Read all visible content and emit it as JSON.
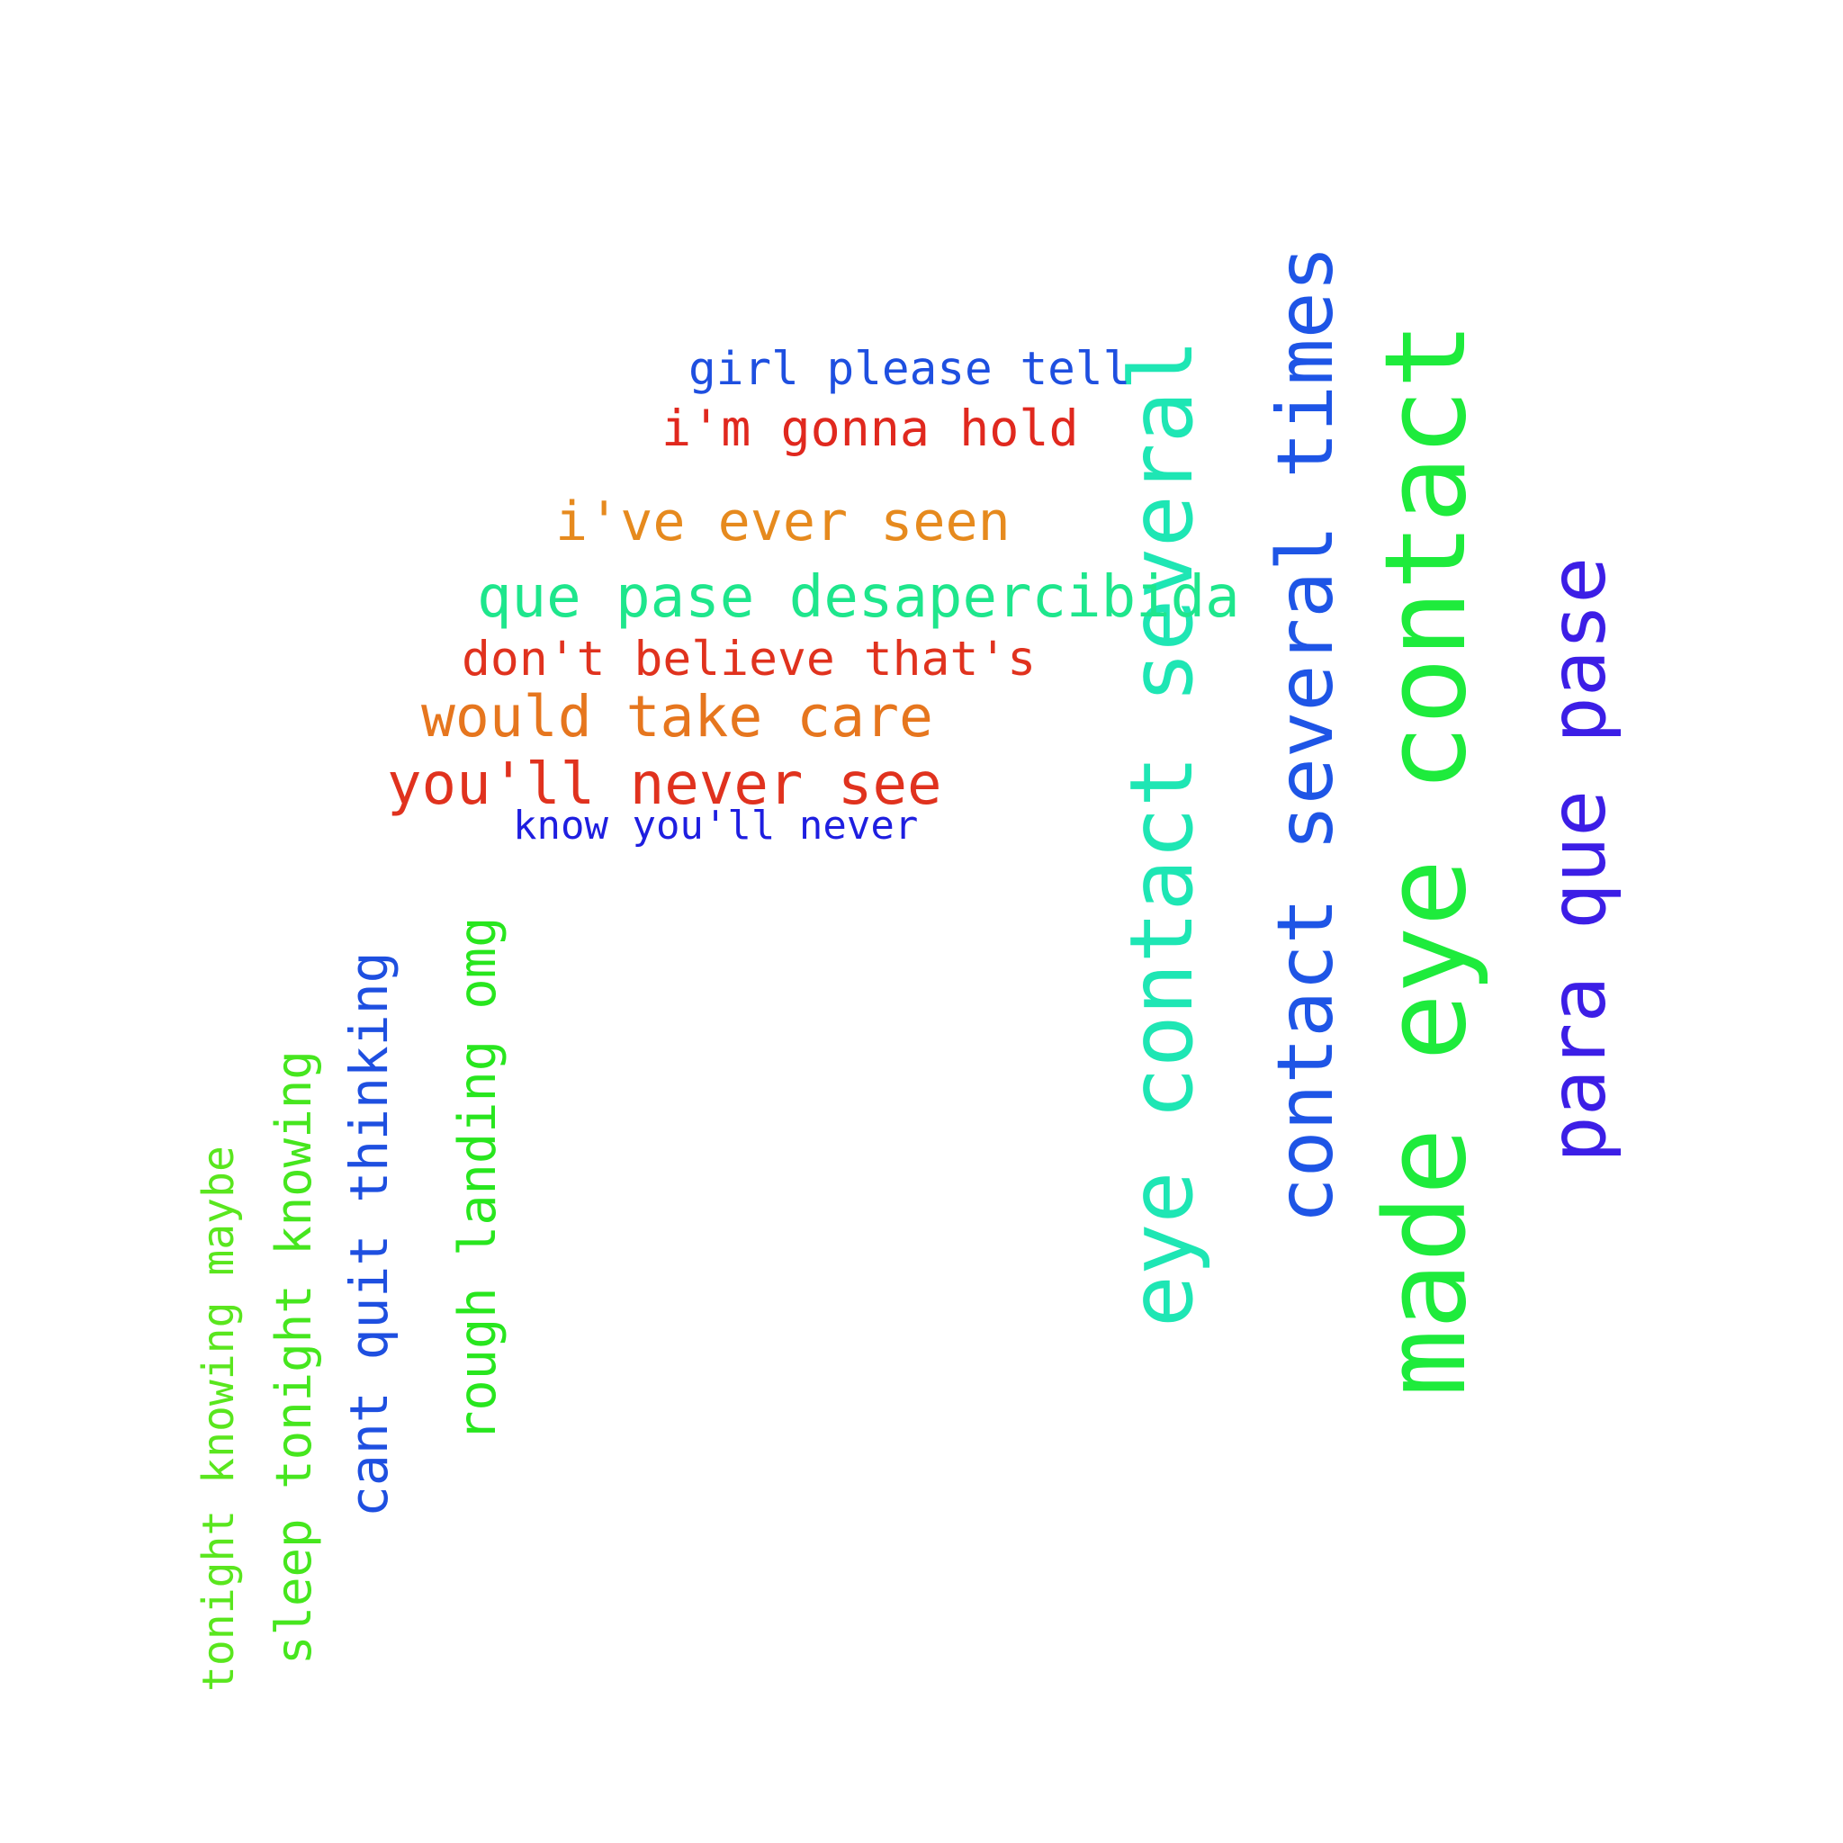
{
  "words": [
    {
      "id": "word-made-eye-contact",
      "text": "made eye contact",
      "color": "#1eeb3c",
      "orientation": "vertical"
    },
    {
      "id": "word-eye-contact-several",
      "text": "eye contact several",
      "color": "#1ee6b4",
      "orientation": "vertical"
    },
    {
      "id": "word-contact-several-times",
      "text": "contact several times",
      "color": "#1e55e6",
      "orientation": "vertical"
    },
    {
      "id": "word-para-que-pase",
      "text": "para que pase",
      "color": "#3c1ee6",
      "orientation": "vertical"
    },
    {
      "id": "word-girl-please-tell",
      "text": "girl please tell",
      "color": "#1e4fe0",
      "orientation": "horizontal"
    },
    {
      "id": "word-im-gonna-hold",
      "text": "i'm gonna hold",
      "color": "#e0281e",
      "orientation": "horizontal"
    },
    {
      "id": "word-ive-ever-seen",
      "text": "i've ever seen",
      "color": "#e68a1e",
      "orientation": "horizontal"
    },
    {
      "id": "word-que-pase-desapercibida",
      "text": "que pase desapercibida",
      "color": "#1ee68c",
      "orientation": "horizontal"
    },
    {
      "id": "word-dont-believe-thats",
      "text": "don't believe that's",
      "color": "#e0321e",
      "orientation": "horizontal"
    },
    {
      "id": "word-would-take-care",
      "text": "would take care",
      "color": "#e6761e",
      "orientation": "horizontal"
    },
    {
      "id": "word-youll-never-see",
      "text": "you'll never see",
      "color": "#e0321e",
      "orientation": "horizontal"
    },
    {
      "id": "word-know-youll-never",
      "text": "know you'll never",
      "color": "#1e1ee0",
      "orientation": "horizontal"
    },
    {
      "id": "word-rough-landing-omg",
      "text": "rough landing omg",
      "color": "#28e61e",
      "orientation": "vertical"
    },
    {
      "id": "word-cant-quit-thinking",
      "text": "cant quit thinking",
      "color": "#1e4fe0",
      "orientation": "vertical"
    },
    {
      "id": "word-sleep-tonight-knowing",
      "text": "sleep tonight knowing",
      "color": "#46e61e",
      "orientation": "vertical"
    },
    {
      "id": "word-tonight-knowing-maybe",
      "text": "tonight knowing maybe",
      "color": "#5ae61e",
      "orientation": "vertical"
    }
  ]
}
